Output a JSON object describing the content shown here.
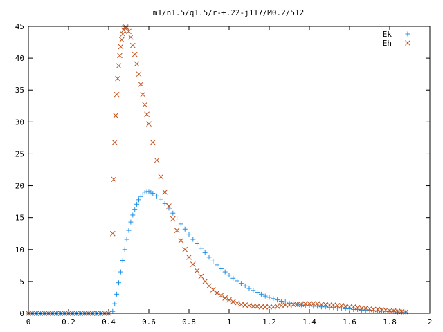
{
  "chart_data": {
    "type": "scatter",
    "title": "m1/n1.5/q1.5/r-+.22-j117/M0.2/512",
    "xlim": [
      0,
      2
    ],
    "ylim": [
      0,
      45
    ],
    "xticks": [
      "0",
      "0.2",
      "0.4",
      "0.6",
      "0.8",
      "1",
      "1.2",
      "1.4",
      "1.6",
      "1.8",
      "2"
    ],
    "yticks": [
      "0",
      "5",
      "10",
      "15",
      "20",
      "25",
      "30",
      "35",
      "40",
      "45"
    ],
    "grid": false,
    "legend_position": "top-right",
    "series": [
      {
        "name": "Ek",
        "marker": "plus",
        "color": "#1f8fe6",
        "points": [
          [
            0.0,
            0
          ],
          [
            0.02,
            0
          ],
          [
            0.04,
            0
          ],
          [
            0.06,
            0
          ],
          [
            0.08,
            0
          ],
          [
            0.1,
            0
          ],
          [
            0.12,
            0
          ],
          [
            0.14,
            0
          ],
          [
            0.16,
            0
          ],
          [
            0.18,
            0
          ],
          [
            0.2,
            0
          ],
          [
            0.22,
            0
          ],
          [
            0.24,
            0
          ],
          [
            0.26,
            0
          ],
          [
            0.28,
            0
          ],
          [
            0.3,
            0
          ],
          [
            0.32,
            0
          ],
          [
            0.34,
            0
          ],
          [
            0.36,
            0
          ],
          [
            0.38,
            0
          ],
          [
            0.4,
            0
          ],
          [
            0.42,
            0.3
          ],
          [
            0.43,
            1.5
          ],
          [
            0.44,
            3.0
          ],
          [
            0.45,
            4.8
          ],
          [
            0.46,
            6.5
          ],
          [
            0.47,
            8.3
          ],
          [
            0.48,
            10.0
          ],
          [
            0.49,
            11.6
          ],
          [
            0.5,
            13.0
          ],
          [
            0.51,
            14.3
          ],
          [
            0.52,
            15.4
          ],
          [
            0.53,
            16.3
          ],
          [
            0.54,
            17.1
          ],
          [
            0.55,
            17.8
          ],
          [
            0.56,
            18.3
          ],
          [
            0.57,
            18.7
          ],
          [
            0.58,
            19.0
          ],
          [
            0.59,
            19.1
          ],
          [
            0.6,
            19.1
          ],
          [
            0.61,
            19.0
          ],
          [
            0.62,
            18.8
          ],
          [
            0.64,
            18.4
          ],
          [
            0.66,
            17.9
          ],
          [
            0.68,
            17.2
          ],
          [
            0.7,
            16.5
          ],
          [
            0.72,
            15.7
          ],
          [
            0.74,
            14.8
          ],
          [
            0.76,
            14.0
          ],
          [
            0.78,
            13.2
          ],
          [
            0.8,
            12.4
          ],
          [
            0.82,
            11.6
          ],
          [
            0.84,
            10.9
          ],
          [
            0.86,
            10.2
          ],
          [
            0.88,
            9.5
          ],
          [
            0.9,
            8.8
          ],
          [
            0.92,
            8.2
          ],
          [
            0.94,
            7.6
          ],
          [
            0.96,
            7.0
          ],
          [
            0.98,
            6.5
          ],
          [
            1.0,
            6.0
          ],
          [
            1.02,
            5.5
          ],
          [
            1.04,
            5.1
          ],
          [
            1.06,
            4.7
          ],
          [
            1.08,
            4.3
          ],
          [
            1.1,
            3.9
          ],
          [
            1.12,
            3.6
          ],
          [
            1.14,
            3.3
          ],
          [
            1.16,
            3.0
          ],
          [
            1.18,
            2.7
          ],
          [
            1.2,
            2.5
          ],
          [
            1.22,
            2.3
          ],
          [
            1.24,
            2.1
          ],
          [
            1.26,
            1.9
          ],
          [
            1.28,
            1.8
          ],
          [
            1.3,
            1.6
          ],
          [
            1.32,
            1.5
          ],
          [
            1.34,
            1.4
          ],
          [
            1.36,
            1.3
          ],
          [
            1.38,
            1.2
          ],
          [
            1.4,
            1.2
          ],
          [
            1.42,
            1.1
          ],
          [
            1.44,
            1.1
          ],
          [
            1.46,
            1.0
          ],
          [
            1.48,
            1.0
          ],
          [
            1.5,
            0.9
          ],
          [
            1.52,
            0.9
          ],
          [
            1.54,
            0.8
          ],
          [
            1.56,
            0.8
          ],
          [
            1.58,
            0.7
          ],
          [
            1.6,
            0.7
          ],
          [
            1.62,
            0.6
          ],
          [
            1.64,
            0.6
          ],
          [
            1.66,
            0.5
          ],
          [
            1.68,
            0.5
          ],
          [
            1.7,
            0.5
          ],
          [
            1.72,
            0.4
          ],
          [
            1.74,
            0.4
          ],
          [
            1.76,
            0.4
          ],
          [
            1.78,
            0.3
          ],
          [
            1.8,
            0.3
          ],
          [
            1.82,
            0.3
          ],
          [
            1.84,
            0.2
          ],
          [
            1.86,
            0.2
          ],
          [
            1.88,
            0.2
          ]
        ]
      },
      {
        "name": "Eh",
        "marker": "cross",
        "color": "#c0501a",
        "points": [
          [
            0.0,
            0
          ],
          [
            0.02,
            0
          ],
          [
            0.04,
            0
          ],
          [
            0.06,
            0
          ],
          [
            0.08,
            0
          ],
          [
            0.1,
            0
          ],
          [
            0.12,
            0
          ],
          [
            0.14,
            0
          ],
          [
            0.16,
            0
          ],
          [
            0.18,
            0
          ],
          [
            0.2,
            0
          ],
          [
            0.22,
            0
          ],
          [
            0.24,
            0
          ],
          [
            0.26,
            0
          ],
          [
            0.28,
            0
          ],
          [
            0.3,
            0
          ],
          [
            0.32,
            0
          ],
          [
            0.34,
            0
          ],
          [
            0.36,
            0
          ],
          [
            0.38,
            0
          ],
          [
            0.4,
            0
          ],
          [
            0.42,
            12.5
          ],
          [
            0.425,
            21.0
          ],
          [
            0.43,
            26.8
          ],
          [
            0.435,
            31.0
          ],
          [
            0.44,
            34.3
          ],
          [
            0.445,
            36.8
          ],
          [
            0.45,
            38.8
          ],
          [
            0.455,
            40.4
          ],
          [
            0.46,
            41.8
          ],
          [
            0.465,
            42.9
          ],
          [
            0.47,
            43.8
          ],
          [
            0.475,
            44.4
          ],
          [
            0.48,
            44.8
          ],
          [
            0.485,
            44.9
          ],
          [
            0.49,
            44.8
          ],
          [
            0.5,
            44.2
          ],
          [
            0.51,
            43.3
          ],
          [
            0.52,
            42.0
          ],
          [
            0.53,
            40.6
          ],
          [
            0.54,
            39.1
          ],
          [
            0.55,
            37.5
          ],
          [
            0.56,
            35.9
          ],
          [
            0.57,
            34.3
          ],
          [
            0.58,
            32.7
          ],
          [
            0.59,
            31.2
          ],
          [
            0.6,
            29.7
          ],
          [
            0.62,
            26.8
          ],
          [
            0.64,
            24.0
          ],
          [
            0.66,
            21.4
          ],
          [
            0.68,
            19.0
          ],
          [
            0.7,
            16.8
          ],
          [
            0.72,
            14.8
          ],
          [
            0.74,
            13.0
          ],
          [
            0.76,
            11.4
          ],
          [
            0.78,
            10.0
          ],
          [
            0.8,
            8.8
          ],
          [
            0.82,
            7.7
          ],
          [
            0.84,
            6.7
          ],
          [
            0.86,
            5.8
          ],
          [
            0.88,
            5.0
          ],
          [
            0.9,
            4.3
          ],
          [
            0.92,
            3.7
          ],
          [
            0.94,
            3.2
          ],
          [
            0.96,
            2.8
          ],
          [
            0.98,
            2.4
          ],
          [
            1.0,
            2.1
          ],
          [
            1.02,
            1.8
          ],
          [
            1.04,
            1.6
          ],
          [
            1.06,
            1.4
          ],
          [
            1.08,
            1.3
          ],
          [
            1.1,
            1.2
          ],
          [
            1.12,
            1.1
          ],
          [
            1.14,
            1.1
          ],
          [
            1.16,
            1.0
          ],
          [
            1.18,
            1.0
          ],
          [
            1.2,
            1.0
          ],
          [
            1.22,
            1.0
          ],
          [
            1.24,
            1.1
          ],
          [
            1.26,
            1.2
          ],
          [
            1.28,
            1.3
          ],
          [
            1.3,
            1.3
          ],
          [
            1.32,
            1.4
          ],
          [
            1.34,
            1.4
          ],
          [
            1.36,
            1.4
          ],
          [
            1.38,
            1.5
          ],
          [
            1.4,
            1.5
          ],
          [
            1.42,
            1.5
          ],
          [
            1.44,
            1.5
          ],
          [
            1.46,
            1.4
          ],
          [
            1.48,
            1.4
          ],
          [
            1.5,
            1.3
          ],
          [
            1.52,
            1.3
          ],
          [
            1.54,
            1.2
          ],
          [
            1.56,
            1.2
          ],
          [
            1.58,
            1.1
          ],
          [
            1.6,
            1.0
          ],
          [
            1.62,
            1.0
          ],
          [
            1.64,
            0.9
          ],
          [
            1.66,
            0.8
          ],
          [
            1.68,
            0.8
          ],
          [
            1.7,
            0.7
          ],
          [
            1.72,
            0.6
          ],
          [
            1.74,
            0.6
          ],
          [
            1.76,
            0.5
          ],
          [
            1.78,
            0.5
          ],
          [
            1.8,
            0.4
          ],
          [
            1.82,
            0.4
          ],
          [
            1.84,
            0.3
          ],
          [
            1.86,
            0.3
          ],
          [
            1.88,
            0.2
          ]
        ]
      }
    ]
  }
}
